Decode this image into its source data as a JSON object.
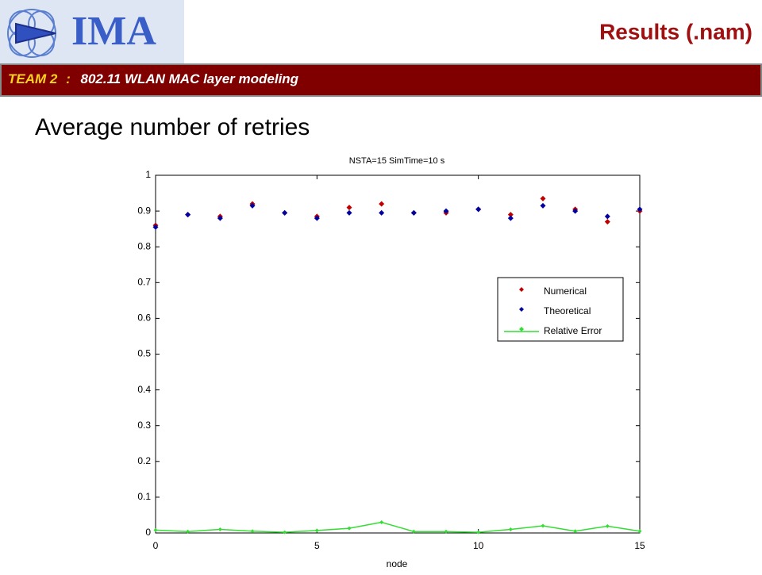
{
  "header": {
    "logo": "IMA",
    "title": "Results (.nam)",
    "team": "TEAM 2",
    "separator": ":",
    "subtitle": "802.11 WLAN MAC layer modeling"
  },
  "heading": "Average number of retries",
  "chart_data": {
    "type": "scatter",
    "title": "NSTA=15   SimTime=10 s",
    "x_label": "node",
    "x": [
      0,
      1,
      2,
      3,
      4,
      5,
      6,
      7,
      8,
      9,
      10,
      11,
      12,
      13,
      14,
      15
    ],
    "series": [
      {
        "name": "Numerical",
        "color": "#c00000",
        "mode": "markers",
        "values": [
          0.86,
          0.89,
          0.885,
          0.92,
          0.895,
          0.885,
          0.91,
          0.92,
          0.895,
          0.895,
          0.905,
          0.89,
          0.935,
          0.905,
          0.87,
          0.9
        ]
      },
      {
        "name": "Theoretical",
        "color": "#0000a0",
        "mode": "markers",
        "values": [
          0.855,
          0.89,
          0.88,
          0.915,
          0.895,
          0.88,
          0.895,
          0.895,
          0.895,
          0.9,
          0.905,
          0.88,
          0.915,
          0.9,
          0.885,
          0.905
        ]
      },
      {
        "name": "Relative Error",
        "color": "#33dd33",
        "mode": "lines+markers",
        "values": [
          0.008,
          0.004,
          0.01,
          0.005,
          0.002,
          0.007,
          0.013,
          0.03,
          0.004,
          0.004,
          0.002,
          0.01,
          0.02,
          0.005,
          0.019,
          0.005
        ]
      }
    ],
    "xlim": [
      0,
      15
    ],
    "xticks": [
      0,
      5,
      10,
      15
    ],
    "ylim": [
      0,
      1
    ],
    "yticks": [
      0,
      0.1,
      0.2,
      0.3,
      0.4,
      0.5,
      0.6,
      0.7,
      0.8,
      0.9,
      1
    ],
    "legend": "right"
  }
}
